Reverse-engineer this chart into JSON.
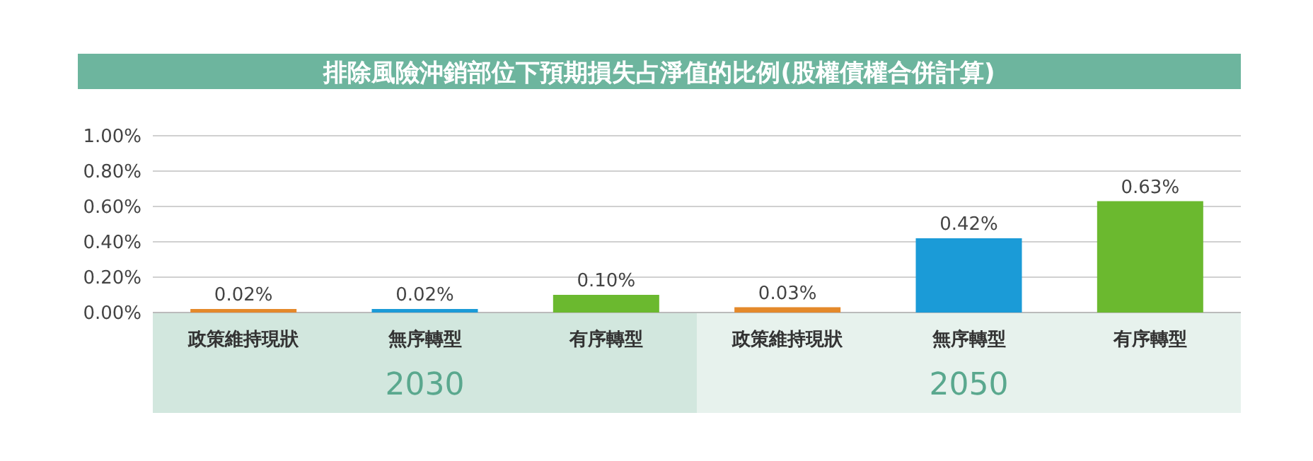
{
  "chart_data": {
    "type": "bar",
    "title": "排除風險沖銷部位下預期損失占淨值的比例(股權債權合併計算)",
    "categories": [
      "政策維持現狀",
      "無序轉型",
      "有序轉型",
      "政策維持現狀",
      "無序轉型",
      "有序轉型"
    ],
    "values": [
      0.02,
      0.02,
      0.1,
      0.03,
      0.42,
      0.63
    ],
    "colors": [
      "#e4892a",
      "#1b9bd7",
      "#6bb92f",
      "#e4892a",
      "#1b9bd7",
      "#6bb92f"
    ],
    "value_labels": [
      "0.02%",
      "0.02%",
      "0.10%",
      "0.03%",
      "0.42%",
      "0.63%"
    ],
    "ylim": [
      0,
      1
    ],
    "yticks": [
      {
        "value": 0,
        "label": "0.00%"
      },
      {
        "value": 0.2,
        "label": "0.20%"
      },
      {
        "value": 0.4,
        "label": "0.40%"
      },
      {
        "value": 0.6,
        "label": "0.60%"
      },
      {
        "value": 0.8,
        "label": "0.80%"
      },
      {
        "value": 1,
        "label": "1.00%"
      }
    ],
    "grid": "y",
    "annotations": [
      "2030",
      "2050"
    ]
  }
}
